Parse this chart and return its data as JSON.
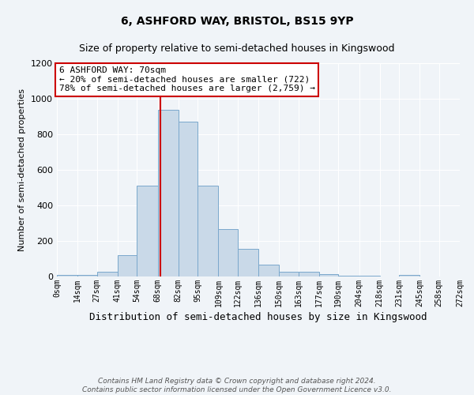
{
  "title1": "6, ASHFORD WAY, BRISTOL, BS15 9YP",
  "title2": "Size of property relative to semi-detached houses in Kingswood",
  "xlabel": "Distribution of semi-detached houses by size in Kingswood",
  "ylabel": "Number of semi-detached properties",
  "bin_edges": [
    0,
    14,
    27,
    41,
    54,
    68,
    82,
    95,
    109,
    122,
    136,
    150,
    163,
    177,
    190,
    204,
    218,
    231,
    245,
    258,
    272
  ],
  "bar_heights": [
    7,
    7,
    28,
    120,
    510,
    940,
    870,
    510,
    265,
    155,
    65,
    25,
    25,
    12,
    5,
    5,
    0,
    7,
    0,
    0
  ],
  "bar_color": "#c9d9e8",
  "bar_edge_color": "#7aa8cc",
  "vline_x": 70,
  "vline_color": "#cc0000",
  "annotation_text": "6 ASHFORD WAY: 70sqm\n← 20% of semi-detached houses are smaller (722)\n78% of semi-detached houses are larger (2,759) →",
  "annotation_box_color": "#ffffff",
  "annotation_box_edge": "#cc0000",
  "ylim": [
    0,
    1200
  ],
  "tick_labels": [
    "0sqm",
    "14sqm",
    "27sqm",
    "41sqm",
    "54sqm",
    "68sqm",
    "82sqm",
    "95sqm",
    "109sqm",
    "122sqm",
    "136sqm",
    "150sqm",
    "163sqm",
    "177sqm",
    "190sqm",
    "204sqm",
    "218sqm",
    "231sqm",
    "245sqm",
    "258sqm",
    "272sqm"
  ],
  "footnote": "Contains HM Land Registry data © Crown copyright and database right 2024.\nContains public sector information licensed under the Open Government Licence v3.0.",
  "bg_color": "#f0f4f8",
  "grid_color": "#ffffff",
  "title1_fontsize": 10,
  "title2_fontsize": 9,
  "xlabel_fontsize": 9,
  "ylabel_fontsize": 8,
  "tick_fontsize": 7,
  "annot_fontsize": 8,
  "footnote_fontsize": 6.5
}
